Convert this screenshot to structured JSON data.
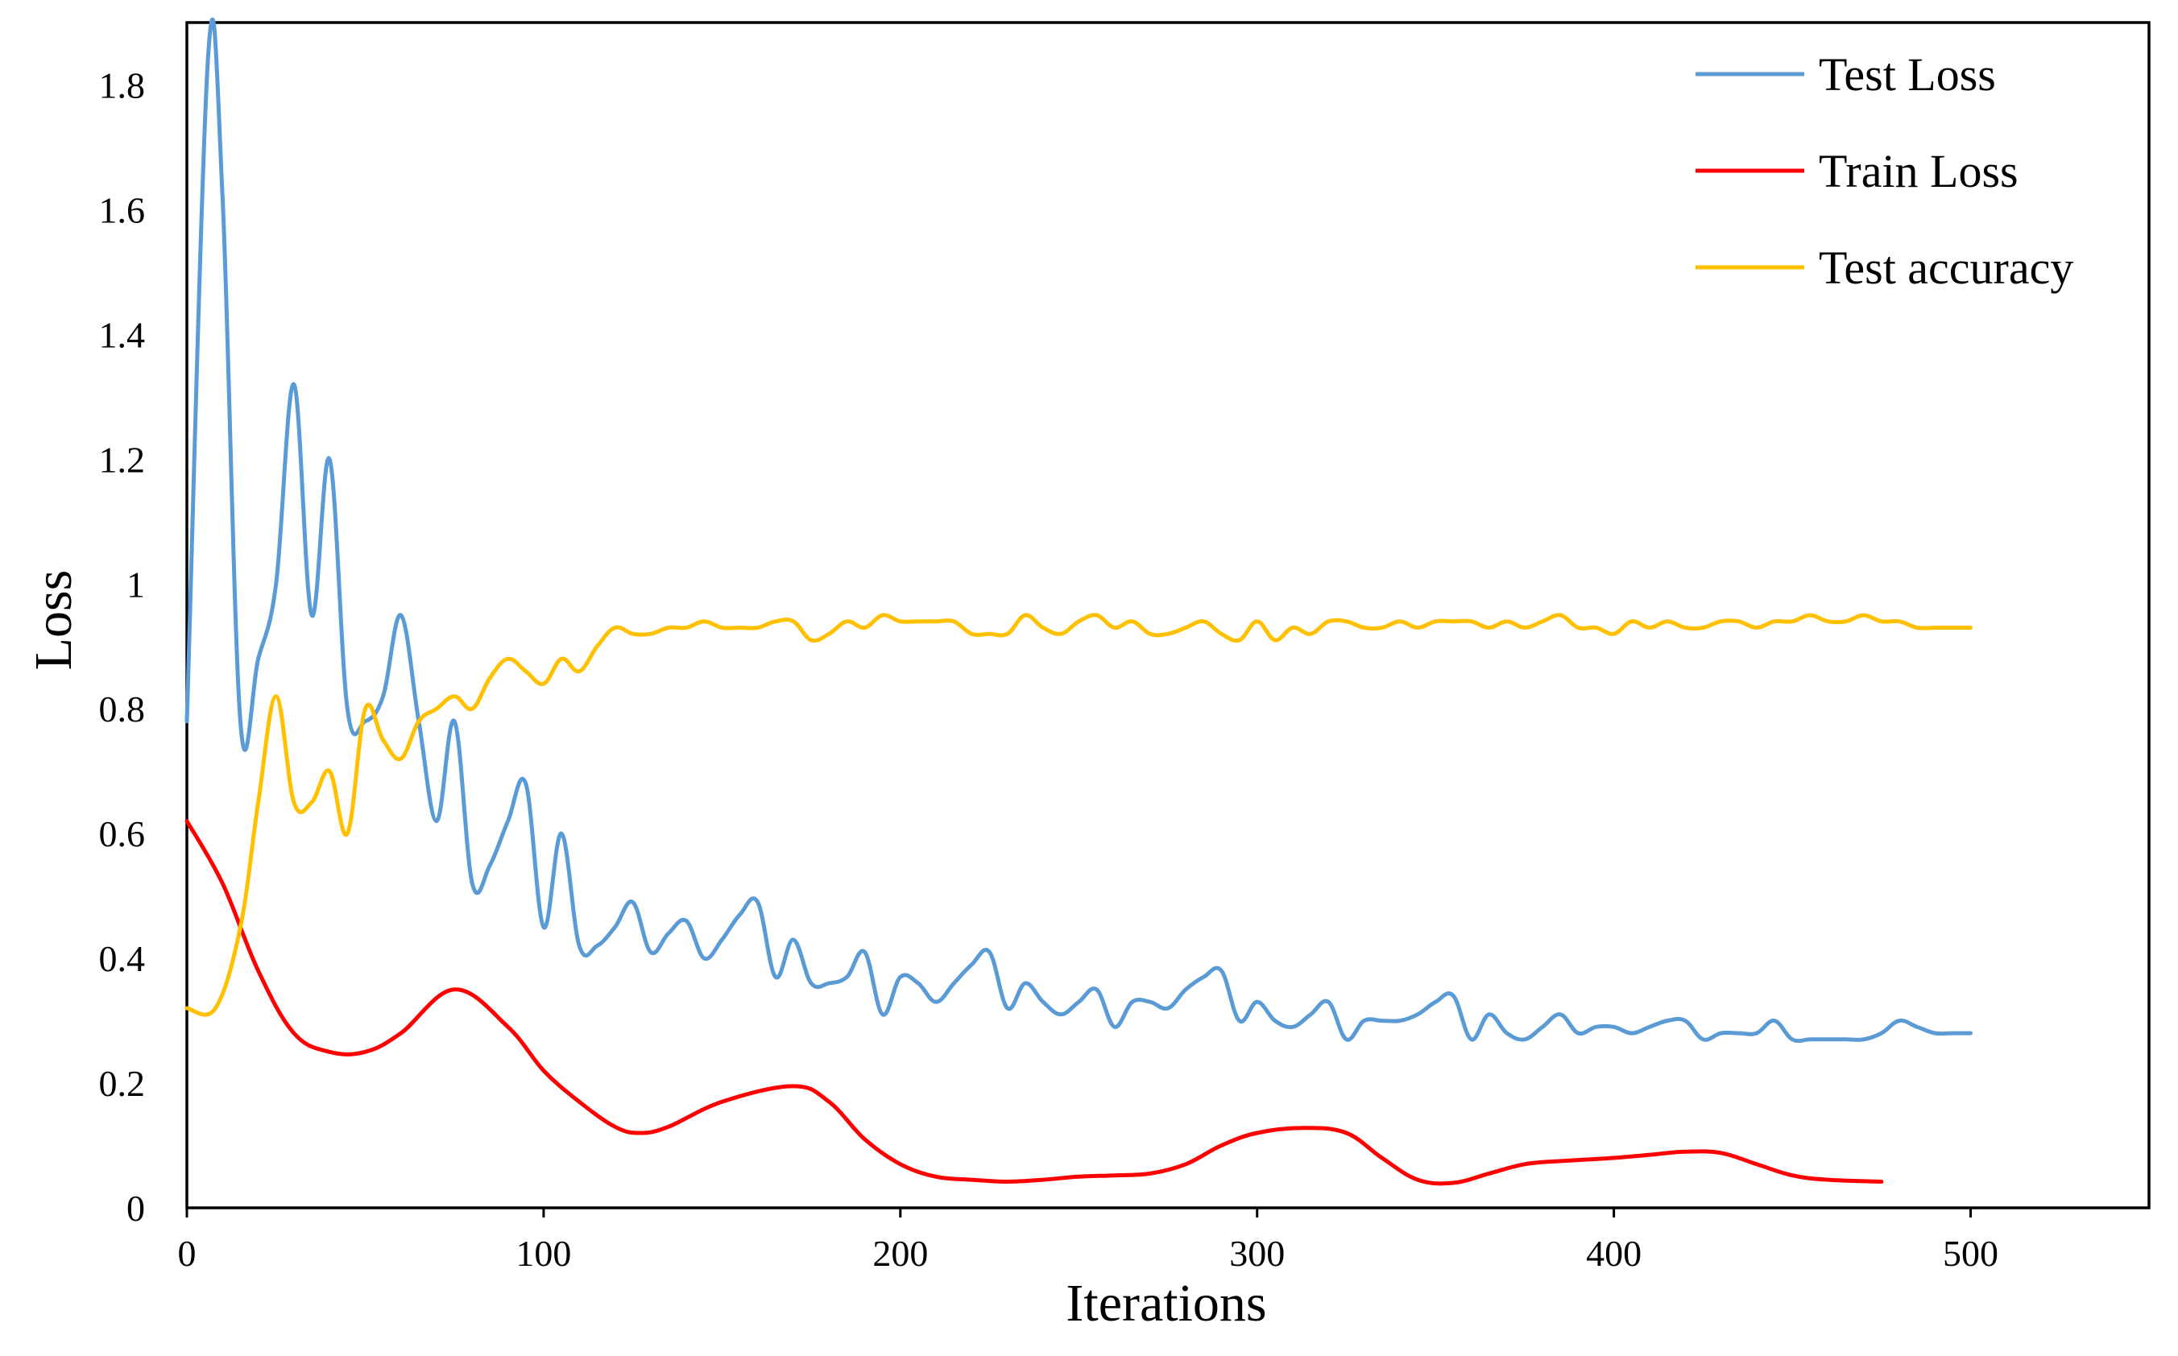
{
  "chart_data": {
    "type": "line",
    "title": "",
    "xlabel": "Iterations",
    "ylabel": "Loss",
    "xlim": [
      0,
      550
    ],
    "ylim": [
      0,
      1.9
    ],
    "xticks": [
      0,
      100,
      200,
      300,
      400,
      500
    ],
    "xtick_labels": [
      "0",
      "100",
      "200",
      "300",
      "400",
      "500"
    ],
    "yticks": [
      0,
      0.2,
      0.4,
      0.6,
      0.8,
      1,
      1.2,
      1.4,
      1.6,
      1.8
    ],
    "ytick_labels": [
      "0",
      "0.2",
      "0.4",
      "0.6",
      "0.8",
      "1",
      "1.2",
      "1.4",
      "1.6",
      "1.8"
    ],
    "grid": false,
    "legend_position": "top-right",
    "series": [
      {
        "name": "Test Loss",
        "color": "#5B9BD5",
        "x": [
          0,
          6,
          10,
          15,
          20,
          25,
          30,
          35,
          40,
          45,
          50,
          55,
          60,
          65,
          70,
          75,
          80,
          85,
          90,
          95,
          100,
          105,
          110,
          115,
          120,
          125,
          130,
          135,
          140,
          145,
          150,
          155,
          160,
          165,
          170,
          175,
          180,
          185,
          190,
          195,
          200,
          205,
          210,
          215,
          220,
          225,
          230,
          235,
          240,
          245,
          250,
          255,
          260,
          265,
          270,
          275,
          280,
          285,
          290,
          295,
          300,
          305,
          310,
          315,
          320,
          325,
          330,
          335,
          340,
          345,
          350,
          355,
          360,
          365,
          370,
          375,
          380,
          385,
          390,
          395,
          400,
          405,
          410,
          415,
          420,
          425,
          430,
          435,
          440,
          445,
          450,
          455,
          460,
          465,
          470,
          475,
          480,
          485,
          490,
          495,
          500
        ],
        "values": [
          0.78,
          1.85,
          1.62,
          0.78,
          0.88,
          1.0,
          1.32,
          0.95,
          1.2,
          0.8,
          0.78,
          0.82,
          0.95,
          0.78,
          0.62,
          0.78,
          0.52,
          0.55,
          0.62,
          0.68,
          0.45,
          0.6,
          0.42,
          0.42,
          0.45,
          0.49,
          0.41,
          0.44,
          0.46,
          0.4,
          0.43,
          0.47,
          0.49,
          0.37,
          0.43,
          0.36,
          0.36,
          0.37,
          0.41,
          0.31,
          0.37,
          0.36,
          0.33,
          0.36,
          0.39,
          0.41,
          0.32,
          0.36,
          0.33,
          0.31,
          0.33,
          0.35,
          0.29,
          0.33,
          0.33,
          0.32,
          0.35,
          0.37,
          0.38,
          0.3,
          0.33,
          0.3,
          0.29,
          0.31,
          0.33,
          0.27,
          0.3,
          0.3,
          0.3,
          0.31,
          0.33,
          0.34,
          0.27,
          0.31,
          0.28,
          0.27,
          0.29,
          0.31,
          0.28,
          0.29,
          0.29,
          0.28,
          0.29,
          0.3,
          0.3,
          0.27,
          0.28,
          0.28,
          0.28,
          0.3,
          0.27,
          0.27,
          0.27,
          0.27,
          0.27,
          0.28,
          0.3,
          0.29,
          0.28,
          0.28,
          0.28
        ]
      },
      {
        "name": "Train Loss",
        "color": "#FF0000",
        "x": [
          0,
          10,
          20,
          30,
          40,
          50,
          60,
          75,
          90,
          100,
          110,
          120,
          127,
          135,
          150,
          170,
          180,
          190,
          200,
          210,
          220,
          230,
          240,
          250,
          260,
          270,
          280,
          290,
          300,
          313,
          325,
          335,
          345,
          355,
          365,
          375,
          385,
          400,
          410,
          420,
          430,
          440,
          450,
          460,
          475
        ],
        "values": [
          0.62,
          0.52,
          0.38,
          0.28,
          0.25,
          0.25,
          0.28,
          0.35,
          0.29,
          0.22,
          0.17,
          0.13,
          0.12,
          0.13,
          0.17,
          0.195,
          0.17,
          0.11,
          0.07,
          0.05,
          0.045,
          0.042,
          0.045,
          0.05,
          0.052,
          0.055,
          0.07,
          0.1,
          0.12,
          0.128,
          0.12,
          0.08,
          0.045,
          0.04,
          0.055,
          0.07,
          0.075,
          0.08,
          0.085,
          0.09,
          0.088,
          0.07,
          0.052,
          0.045,
          0.042
        ]
      },
      {
        "name": "Test accuracy",
        "color": "#FFC000",
        "x": [
          0,
          8,
          15,
          20,
          25,
          30,
          35,
          40,
          45,
          50,
          55,
          60,
          65,
          70,
          75,
          80,
          85,
          90,
          95,
          100,
          105,
          110,
          115,
          120,
          125,
          130,
          135,
          140,
          145,
          150,
          155,
          160,
          165,
          170,
          175,
          180,
          185,
          190,
          195,
          200,
          205,
          210,
          215,
          220,
          225,
          230,
          235,
          240,
          245,
          250,
          255,
          260,
          265,
          270,
          275,
          280,
          285,
          290,
          295,
          300,
          305,
          310,
          315,
          320,
          325,
          330,
          335,
          340,
          345,
          350,
          355,
          360,
          365,
          370,
          375,
          380,
          385,
          390,
          395,
          400,
          405,
          410,
          415,
          420,
          425,
          430,
          435,
          440,
          445,
          450,
          455,
          460,
          465,
          470,
          475,
          480,
          485,
          490,
          495,
          500
        ],
        "values": [
          0.32,
          0.32,
          0.45,
          0.65,
          0.82,
          0.65,
          0.65,
          0.7,
          0.6,
          0.8,
          0.75,
          0.72,
          0.78,
          0.8,
          0.82,
          0.8,
          0.85,
          0.88,
          0.86,
          0.84,
          0.88,
          0.86,
          0.9,
          0.93,
          0.92,
          0.92,
          0.93,
          0.93,
          0.94,
          0.93,
          0.93,
          0.93,
          0.94,
          0.94,
          0.91,
          0.92,
          0.94,
          0.93,
          0.95,
          0.94,
          0.94,
          0.94,
          0.94,
          0.92,
          0.92,
          0.92,
          0.95,
          0.93,
          0.92,
          0.94,
          0.95,
          0.93,
          0.94,
          0.92,
          0.92,
          0.93,
          0.94,
          0.92,
          0.91,
          0.94,
          0.91,
          0.93,
          0.92,
          0.94,
          0.94,
          0.93,
          0.93,
          0.94,
          0.93,
          0.94,
          0.94,
          0.94,
          0.93,
          0.94,
          0.93,
          0.94,
          0.95,
          0.93,
          0.93,
          0.92,
          0.94,
          0.93,
          0.94,
          0.93,
          0.93,
          0.94,
          0.94,
          0.93,
          0.94,
          0.94,
          0.95,
          0.94,
          0.94,
          0.95,
          0.94,
          0.94,
          0.93,
          0.93,
          0.93,
          0.93
        ]
      }
    ]
  }
}
